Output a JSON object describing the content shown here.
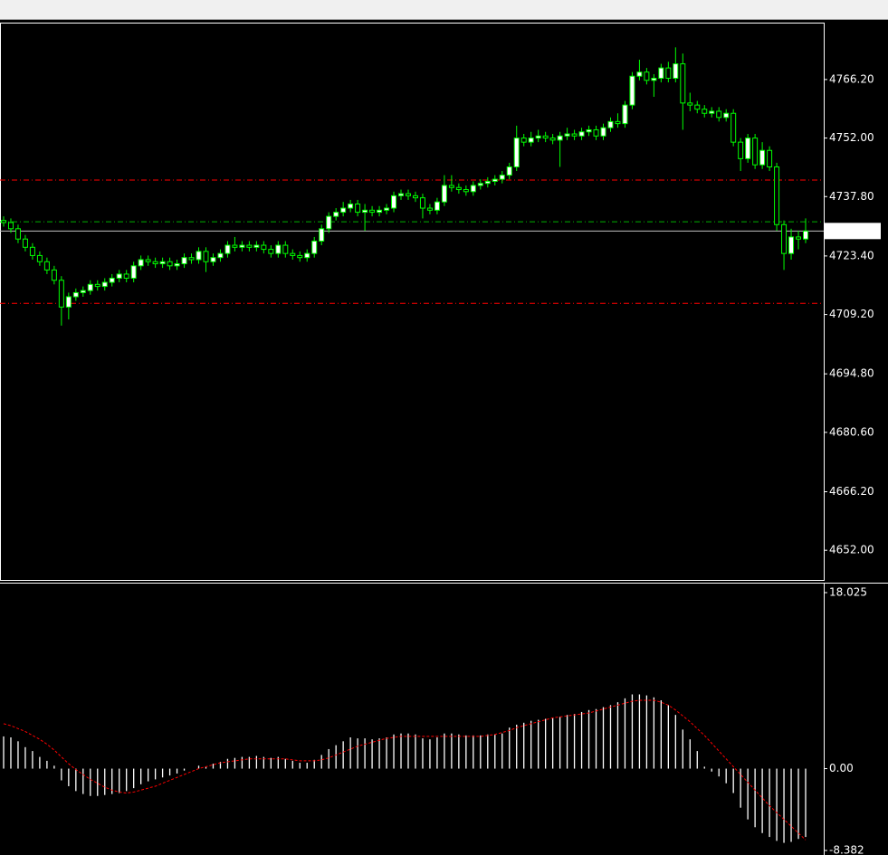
{
  "chart_data": [
    {
      "type": "candlestick",
      "up_color": "#ffffff",
      "down_color": "#000000",
      "wick_color": "#00ff00",
      "ylim": [
        4644.8,
        4780.0
      ],
      "yticks": [
        {
          "value": 4766.2,
          "label": "4766.20"
        },
        {
          "value": 4752,
          "label": "4752.00"
        },
        {
          "value": 4737.8,
          "label": "4737.80"
        },
        {
          "value": 4723.4,
          "label": "4723.40"
        },
        {
          "value": 4709.2,
          "label": "4709.20"
        },
        {
          "value": 4694.8,
          "label": "4694.80"
        },
        {
          "value": 4680.6,
          "label": "4680.60"
        },
        {
          "value": 4666.2,
          "label": "4666.20"
        },
        {
          "value": 4652,
          "label": "4652.00"
        }
      ],
      "last_price": 4729.45,
      "levels": [
        {
          "value": 4741.8,
          "color": "#ff0000"
        },
        {
          "value": 4711.9,
          "color": "#ff0000"
        },
        {
          "value": 4731.7,
          "color": "#00b000"
        }
      ],
      "open": [
        4732,
        4731.5,
        4730,
        4727.5,
        4725.5,
        4723.5,
        4722,
        4720,
        4717.5,
        4711,
        4713.5,
        4714.5,
        4715,
        4716.5,
        4716,
        4717,
        4718,
        4719,
        4718,
        4721,
        4722.5,
        4722,
        4721.5,
        4722,
        4721,
        4721.5,
        4723,
        4722.5,
        4724.5,
        4722,
        4723,
        4724,
        4726,
        4725.5,
        4726,
        4725.5,
        4726,
        4725,
        4724,
        4726,
        4724,
        4723.5,
        4723,
        4724,
        4727,
        4730,
        4733,
        4734,
        4735,
        4736,
        4734,
        4734.5,
        4734,
        4734.5,
        4735,
        4738,
        4738.5,
        4738,
        4737.5,
        4735,
        4734.5,
        4736.5,
        4740.5,
        4740,
        4739.5,
        4739,
        4740.5,
        4741,
        4741.5,
        4742,
        4743,
        4745,
        4752,
        4751,
        4752,
        4752.5,
        4752,
        4751.5,
        4752.5,
        4753,
        4752.5,
        4753.5,
        4754,
        4752.5,
        4754.5,
        4756,
        4755.5,
        4760,
        4767,
        4768,
        4766,
        4766.5,
        4769,
        4766.5,
        4770,
        4760.5,
        4760,
        4759,
        4758,
        4758.5,
        4757,
        4758,
        4751,
        4747,
        4752,
        4745.5,
        4749,
        4745,
        4731,
        4724,
        4728,
        4727.5
      ],
      "high": [
        4733,
        4732.5,
        4731,
        4728.5,
        4726.5,
        4724.5,
        4723,
        4721,
        4718.5,
        4714.5,
        4715.5,
        4716,
        4717.5,
        4717.5,
        4718,
        4719,
        4720,
        4720,
        4722,
        4723.5,
        4723.5,
        4723,
        4723,
        4723,
        4722.5,
        4724,
        4724,
        4725.5,
        4725.5,
        4724,
        4725,
        4727,
        4728,
        4727,
        4727,
        4727,
        4727,
        4726,
        4727,
        4727,
        4725,
        4724.5,
        4725,
        4728,
        4731,
        4734,
        4735,
        4736.5,
        4737,
        4737,
        4736,
        4735.5,
        4735.5,
        4736,
        4739,
        4739.5,
        4739.5,
        4739,
        4738.5,
        4736,
        4737.5,
        4743,
        4743,
        4741,
        4740.5,
        4741.5,
        4742,
        4742.5,
        4743,
        4744,
        4746,
        4755,
        4753,
        4753.5,
        4754,
        4753.5,
        4753,
        4753.5,
        4754.5,
        4754,
        4754.5,
        4755,
        4755,
        4755.5,
        4757,
        4758,
        4761,
        4768,
        4771,
        4769,
        4767.5,
        4770,
        4770.5,
        4774,
        4772.5,
        4763,
        4761,
        4760,
        4759.5,
        4759.5,
        4759,
        4759,
        4752,
        4753,
        4753,
        4751,
        4750,
        4746,
        4732,
        4730,
        4729.5,
        4732.5
      ],
      "low": [
        4730.5,
        4729,
        4726.5,
        4724.5,
        4722.5,
        4721,
        4719,
        4716.5,
        4706.5,
        4708,
        4712.5,
        4713.5,
        4714,
        4715,
        4715,
        4716,
        4717,
        4717,
        4717,
        4720,
        4721,
        4720.5,
        4720.5,
        4720,
        4720,
        4720.5,
        4721.5,
        4721.5,
        4719.5,
        4721,
        4722,
        4723,
        4724.5,
        4724.5,
        4724.5,
        4724.5,
        4724,
        4723,
        4723,
        4723,
        4722.5,
        4722,
        4722,
        4723,
        4726,
        4729,
        4732,
        4733,
        4734,
        4733,
        4729.5,
        4733,
        4733,
        4733.5,
        4734,
        4737,
        4737,
        4736.5,
        4732.5,
        4733.5,
        4733.5,
        4735.5,
        4739,
        4738.5,
        4738,
        4738,
        4739.5,
        4740,
        4740.5,
        4741,
        4742,
        4744,
        4750,
        4750,
        4751,
        4751,
        4750.5,
        4745,
        4751.5,
        4751.5,
        4751.5,
        4752.5,
        4751.5,
        4751.5,
        4753.5,
        4754.5,
        4754.5,
        4759,
        4766,
        4765,
        4762,
        4765.5,
        4765.5,
        4765.5,
        4754,
        4758.5,
        4758,
        4757,
        4757,
        4756,
        4756,
        4750,
        4744,
        4746,
        4744.5,
        4744.5,
        4744,
        4729.5,
        4720,
        4722.5,
        4725,
        4726.5
      ],
      "close": [
        4731.5,
        4730,
        4727.5,
        4725.5,
        4723.5,
        4722,
        4720,
        4717.5,
        4711,
        4713.5,
        4714.5,
        4715,
        4716.5,
        4716,
        4717,
        4718,
        4719,
        4718,
        4721,
        4722.5,
        4722,
        4721.5,
        4722,
        4721,
        4721.5,
        4723,
        4722.5,
        4724.5,
        4722,
        4723,
        4724,
        4726,
        4725.5,
        4726,
        4725.5,
        4726,
        4725,
        4724,
        4726,
        4724,
        4723.5,
        4723,
        4724,
        4727,
        4730,
        4733,
        4734,
        4735,
        4736,
        4734,
        4734.5,
        4734,
        4734.5,
        4735,
        4738,
        4738.5,
        4738,
        4737.5,
        4735,
        4734.5,
        4736.5,
        4740.5,
        4740,
        4739.5,
        4739,
        4740.5,
        4741,
        4741.5,
        4742,
        4743,
        4745,
        4752,
        4751,
        4752,
        4752.5,
        4752,
        4751.5,
        4752.5,
        4753,
        4752.5,
        4753.5,
        4754,
        4752.5,
        4754.5,
        4756,
        4755.5,
        4760,
        4767,
        4768,
        4766,
        4766.5,
        4769,
        4766.5,
        4770,
        4760.5,
        4760,
        4759,
        4758,
        4758.5,
        4757,
        4758,
        4751,
        4747,
        4752,
        4745.5,
        4749,
        4745,
        4731,
        4724,
        4728,
        4727.5,
        4729.45
      ]
    },
    {
      "type": "bar",
      "ylim": [
        -8.382,
        18.025
      ],
      "yticks": [
        18.025,
        {
          "value": 0,
          "label": "0.00"
        },
        -8.382
      ],
      "series": [
        {
          "type": "bar",
          "color": "#ffffff",
          "values": [
            3.3,
            3.2,
            2.8,
            2.2,
            1.8,
            1.2,
            0.8,
            0.3,
            -1.2,
            -1.8,
            -2.3,
            -2.6,
            -2.8,
            -2.8,
            -2.7,
            -2.6,
            -2.5,
            -2.3,
            -2.0,
            -1.6,
            -1.3,
            -1.1,
            -0.9,
            -0.7,
            -0.5,
            -0.2,
            0.0,
            0.3,
            0.2,
            0.5,
            0.7,
            1.0,
            1.1,
            1.2,
            1.2,
            1.3,
            1.2,
            1.1,
            1.2,
            1.0,
            0.8,
            0.6,
            0.6,
            0.9,
            1.4,
            2.0,
            2.4,
            2.8,
            3.2,
            3.1,
            3.1,
            3.0,
            3.1,
            3.2,
            3.5,
            3.6,
            3.6,
            3.5,
            3.1,
            3.0,
            3.2,
            3.6,
            3.6,
            3.5,
            3.4,
            3.4,
            3.4,
            3.5,
            3.5,
            3.6,
            4.2,
            4.5,
            4.7,
            4.9,
            5.0,
            5.1,
            5.2,
            5.3,
            5.5,
            5.6,
            5.8,
            6.0,
            6.1,
            6.3,
            6.5,
            6.8,
            7.2,
            7.6,
            7.6,
            7.5,
            7.3,
            7.0,
            6.5,
            5.5,
            4.0,
            3.0,
            1.8,
            0.2,
            -0.3,
            -0.8,
            -1.5,
            -2.5,
            -4.0,
            -5.2,
            -6.0,
            -6.6,
            -7.0,
            -7.4,
            -7.6,
            -7.5,
            -7.2,
            -7.0
          ]
        },
        {
          "type": "line",
          "color": "#ff0000",
          "values": [
            4.6,
            4.4,
            4.1,
            3.8,
            3.4,
            3.0,
            2.5,
            1.9,
            1.2,
            0.5,
            -0.1,
            -0.6,
            -1.1,
            -1.5,
            -1.9,
            -2.2,
            -2.4,
            -2.5,
            -2.4,
            -2.2,
            -2.0,
            -1.8,
            -1.5,
            -1.2,
            -0.9,
            -0.6,
            -0.3,
            0.0,
            0.2,
            0.4,
            0.6,
            0.7,
            0.8,
            0.9,
            1.0,
            1.0,
            1.0,
            1.0,
            1.0,
            1.0,
            0.9,
            0.8,
            0.8,
            0.8,
            0.9,
            1.1,
            1.4,
            1.7,
            2.0,
            2.3,
            2.5,
            2.7,
            2.9,
            3.1,
            3.2,
            3.3,
            3.3,
            3.3,
            3.3,
            3.3,
            3.3,
            3.3,
            3.3,
            3.3,
            3.3,
            3.3,
            3.3,
            3.4,
            3.5,
            3.7,
            3.9,
            4.2,
            4.4,
            4.6,
            4.8,
            5.0,
            5.2,
            5.3,
            5.4,
            5.5,
            5.6,
            5.7,
            5.9,
            6.1,
            6.3,
            6.5,
            6.7,
            6.9,
            7.0,
            7.0,
            7.0,
            6.8,
            6.5,
            6.0,
            5.4,
            4.8,
            4.1,
            3.4,
            2.6,
            1.8,
            1.0,
            0.2,
            -0.6,
            -1.4,
            -2.2,
            -3.0,
            -3.8,
            -4.5,
            -5.2,
            -5.9,
            -6.6,
            -7.3
          ]
        }
      ]
    }
  ]
}
